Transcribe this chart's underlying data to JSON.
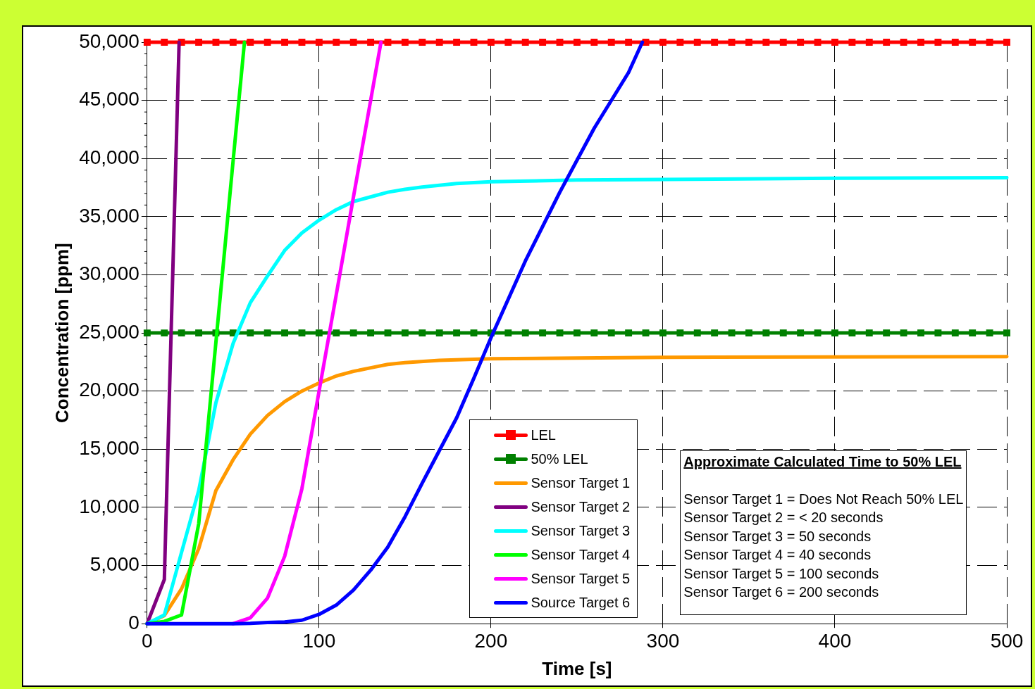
{
  "chart_data": {
    "type": "line",
    "xlabel": "Time [s]",
    "ylabel": "Concentration [ppm]",
    "xlim": [
      0,
      500
    ],
    "xticks": [
      0,
      100,
      200,
      300,
      400,
      500
    ],
    "ylim": [
      0,
      50000
    ],
    "yticks": [
      {
        "value": 0,
        "label": "0"
      },
      {
        "value": 5000,
        "label": "5,000"
      },
      {
        "value": 10000,
        "label": "10,000"
      },
      {
        "value": 15000,
        "label": "15,000"
      },
      {
        "value": 20000,
        "label": "20,000"
      },
      {
        "value": 25000,
        "label": "25,000"
      },
      {
        "value": 30000,
        "label": "30,000"
      },
      {
        "value": 35000,
        "label": "35,000"
      },
      {
        "value": 40000,
        "label": "40,000"
      },
      {
        "value": 45000,
        "label": "45,000"
      },
      {
        "value": 50000,
        "label": "50,000"
      }
    ],
    "grid": true,
    "legend": "bottom",
    "line_style": "solid",
    "series": [
      {
        "name": "LEL",
        "color": "#ff0000",
        "marker": "square",
        "x": [
          0,
          10,
          20,
          30,
          40,
          50,
          60,
          70,
          80,
          90,
          100,
          110,
          120,
          130,
          140,
          150,
          160,
          170,
          180,
          190,
          200,
          210,
          220,
          230,
          240,
          250,
          260,
          270,
          280,
          290,
          300,
          310,
          320,
          330,
          340,
          350,
          360,
          370,
          380,
          390,
          400,
          410,
          420,
          430,
          440,
          450,
          460,
          470,
          480,
          490,
          500
        ],
        "values": [
          50000,
          50000,
          50000,
          50000,
          50000,
          50000,
          50000,
          50000,
          50000,
          50000,
          50000,
          50000,
          50000,
          50000,
          50000,
          50000,
          50000,
          50000,
          50000,
          50000,
          50000,
          50000,
          50000,
          50000,
          50000,
          50000,
          50000,
          50000,
          50000,
          50000,
          50000,
          50000,
          50000,
          50000,
          50000,
          50000,
          50000,
          50000,
          50000,
          50000,
          50000,
          50000,
          50000,
          50000,
          50000,
          50000,
          50000,
          50000,
          50000,
          50000,
          50000
        ]
      },
      {
        "name": "50% LEL",
        "color": "#008000",
        "marker": "square",
        "x": [
          0,
          10,
          20,
          30,
          40,
          50,
          60,
          70,
          80,
          90,
          100,
          110,
          120,
          130,
          140,
          150,
          160,
          170,
          180,
          190,
          200,
          210,
          220,
          230,
          240,
          250,
          260,
          270,
          280,
          290,
          300,
          310,
          320,
          330,
          340,
          350,
          360,
          370,
          380,
          390,
          400,
          410,
          420,
          430,
          440,
          450,
          460,
          470,
          480,
          490,
          500
        ],
        "values": [
          25000,
          25000,
          25000,
          25000,
          25000,
          25000,
          25000,
          25000,
          25000,
          25000,
          25000,
          25000,
          25000,
          25000,
          25000,
          25000,
          25000,
          25000,
          25000,
          25000,
          25000,
          25000,
          25000,
          25000,
          25000,
          25000,
          25000,
          25000,
          25000,
          25000,
          25000,
          25000,
          25000,
          25000,
          25000,
          25000,
          25000,
          25000,
          25000,
          25000,
          25000,
          25000,
          25000,
          25000,
          25000,
          25000,
          25000,
          25000,
          25000,
          25000,
          25000
        ]
      },
      {
        "name": "Sensor Target 1",
        "color": "#ff9900",
        "marker": "none",
        "x": [
          0,
          10,
          20,
          30,
          40,
          50,
          60,
          70,
          80,
          90,
          100,
          110,
          120,
          130,
          140,
          150,
          170,
          200,
          250,
          300,
          500
        ],
        "values": [
          0,
          700,
          3000,
          6450,
          11450,
          14100,
          16300,
          17900,
          19100,
          20000,
          20700,
          21300,
          21700,
          22000,
          22300,
          22450,
          22650,
          22780,
          22840,
          22900,
          22970
        ]
      },
      {
        "name": "Sensor Target 2",
        "color": "#800080",
        "marker": "none",
        "x": [
          0,
          10,
          18.6
        ],
        "values": [
          0,
          3800,
          50000
        ]
      },
      {
        "name": "Sensor Target 3",
        "color": "#00ffff",
        "marker": "none",
        "x": [
          0,
          10,
          20,
          30,
          40,
          50,
          60,
          70,
          80,
          90,
          100,
          110,
          120,
          130,
          140,
          150,
          160,
          170,
          180,
          200,
          250,
          300,
          400,
          500
        ],
        "values": [
          0,
          750,
          6130,
          11450,
          19000,
          24100,
          27600,
          29900,
          32100,
          33600,
          34700,
          35600,
          36300,
          36700,
          37100,
          37350,
          37550,
          37700,
          37850,
          38000,
          38150,
          38200,
          38300,
          38350
        ]
      },
      {
        "name": "Sensor Target 4",
        "color": "#00ff00",
        "marker": "none",
        "x": [
          0,
          10,
          20,
          30,
          40,
          50,
          56.6
        ],
        "values": [
          0,
          200,
          750,
          8600,
          24200,
          39800,
          50000
        ]
      },
      {
        "name": "Sensor Target 5",
        "color": "#ff00ff",
        "marker": "none",
        "x": [
          50,
          60,
          70,
          80,
          90,
          100,
          110,
          120,
          130,
          136
        ],
        "values": [
          0,
          500,
          2200,
          5800,
          11600,
          20000,
          28300,
          36700,
          45000,
          50000
        ]
      },
      {
        "name": "Source Target 6",
        "color": "#0000ff",
        "marker": "none",
        "x": [
          0,
          10,
          20,
          30,
          40,
          50,
          60,
          70,
          80,
          90,
          100,
          110,
          120,
          130,
          140,
          150,
          160,
          170,
          180,
          190,
          200,
          220,
          240,
          260,
          280,
          288
        ],
        "values": [
          0,
          0,
          0,
          0,
          0,
          0,
          30,
          100,
          150,
          300,
          800,
          1600,
          2900,
          4600,
          6600,
          9200,
          12100,
          14900,
          17700,
          21100,
          24600,
          31200,
          37100,
          42600,
          47400,
          50000
        ]
      }
    ],
    "annotations": [
      "Approximate Calculated Time to 50% LEL",
      "Sensor Target 1 = Does Not Reach 50% LEL",
      "Sensor Target 2 = < 20 seconds",
      "Sensor Target 3 = 50 seconds",
      "Sensor Target 4 = 40 seconds",
      "Sensor Target 5 = 100 seconds",
      "Sensor Target 6 = 200 seconds"
    ]
  }
}
